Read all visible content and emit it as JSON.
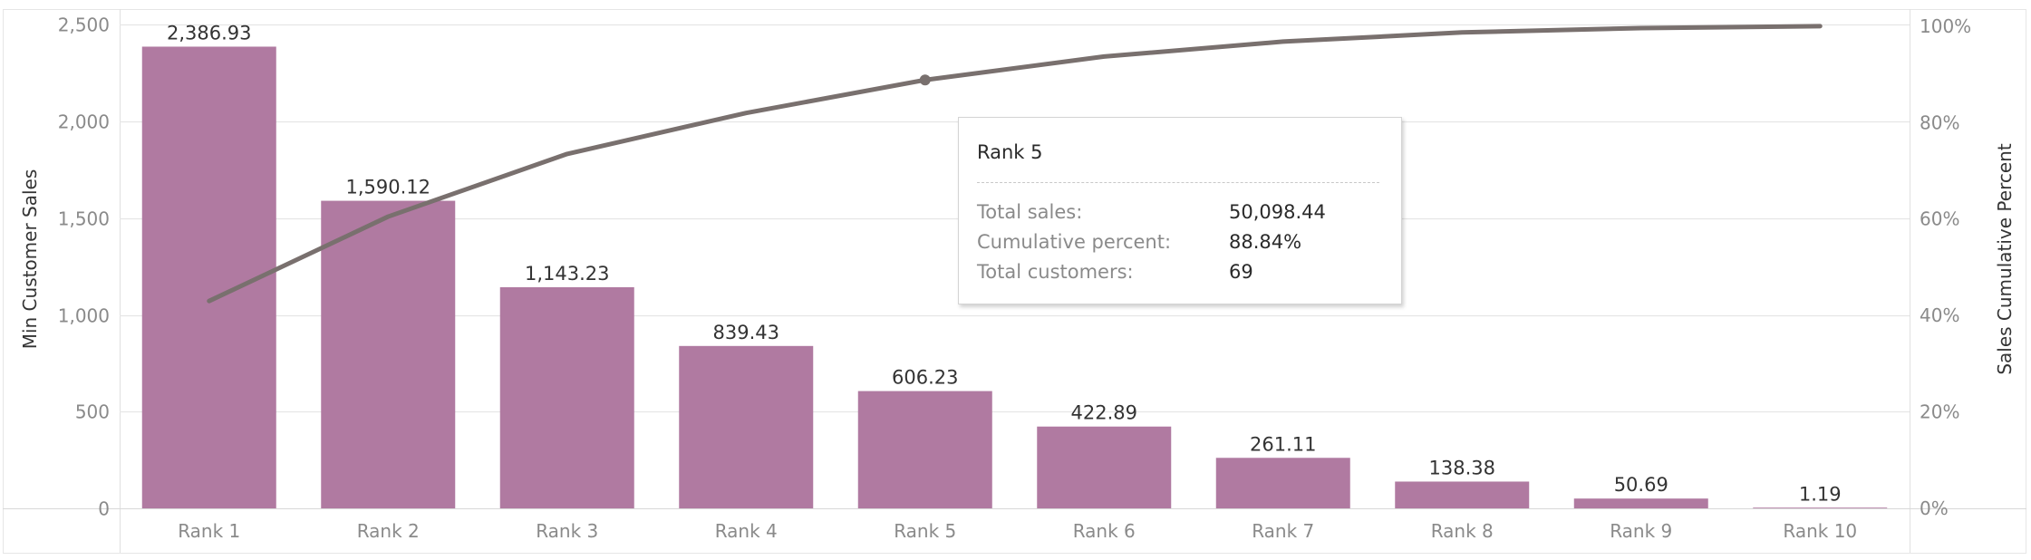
{
  "chart_data": {
    "type": "bar",
    "categories": [
      "Rank 1",
      "Rank 2",
      "Rank 3",
      "Rank 4",
      "Rank 5",
      "Rank 6",
      "Rank 7",
      "Rank 8",
      "Rank 9",
      "Rank 10"
    ],
    "series": [
      {
        "name": "Min Customer Sales",
        "type": "bar",
        "axis": "left",
        "values": [
          2386.93,
          1590.12,
          1143.23,
          839.43,
          606.23,
          422.89,
          261.11,
          138.38,
          50.69,
          1.19
        ],
        "labels": [
          "2,386.93",
          "1,590.12",
          "1,143.23",
          "839.43",
          "606.23",
          "422.89",
          "261.11",
          "138.38",
          "50.69",
          "1.19"
        ]
      },
      {
        "name": "Sales Cumulative Percent",
        "type": "line",
        "axis": "right",
        "values": [
          43.0,
          60.5,
          73.5,
          82.0,
          88.84,
          93.7,
          96.8,
          98.7,
          99.6,
          100.0
        ]
      }
    ],
    "ylabel": "Min Customer Sales",
    "y2label": "Sales Cumulative Percent",
    "ylim": [
      0,
      2600
    ],
    "y2lim": [
      0,
      104.3
    ],
    "yticks": [
      0,
      500,
      1000,
      1500,
      2000,
      2500
    ],
    "ytick_labels": [
      "0",
      "500",
      "1,000",
      "1,500",
      "2,000",
      "2,500"
    ],
    "y2ticks": [
      0,
      20,
      40,
      60,
      80,
      100
    ],
    "y2tick_labels": [
      "0%",
      "20%",
      "40%",
      "60%",
      "80%",
      "100%"
    ],
    "grid": true,
    "highlight_index": 4,
    "colors": {
      "bar": "#b07aa1",
      "line": "#79706e",
      "grid": "#e6e6e6",
      "axis_text": "#8a8a8a",
      "label_text": "#333333"
    }
  },
  "tooltip": {
    "title": "Rank 5",
    "rows": [
      {
        "label": "Total sales:",
        "value": "50,098.44"
      },
      {
        "label": "Cumulative percent:",
        "value": "88.84%"
      },
      {
        "label": "Total customers:",
        "value": "69"
      }
    ]
  }
}
